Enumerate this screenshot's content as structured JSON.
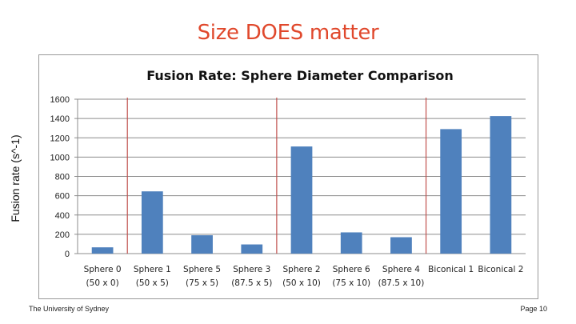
{
  "slide": {
    "title": "Size DOES matter",
    "footer_left": "The University of Sydney",
    "footer_right": "Page 10"
  },
  "chart_data": {
    "type": "bar",
    "title": "Fusion Rate: Sphere Diameter Comparison",
    "ylabel": "Fusion rate (s^-1)",
    "xlabel": "",
    "ylim": [
      0,
      1600
    ],
    "yticks": [
      0,
      200,
      400,
      600,
      800,
      1000,
      1200,
      1400,
      1600
    ],
    "grid": true,
    "legend": "none",
    "bar_color": "#4f81bd",
    "separator_color": "#c0504d",
    "categories": [
      [
        "Sphere 0",
        "(50 x 0)"
      ],
      [
        "Sphere 1",
        "(50 x 5)"
      ],
      [
        "Sphere 5",
        "(75 x 5)"
      ],
      [
        "Sphere 3",
        "(87.5 x 5)"
      ],
      [
        "Sphere 2",
        "(50 x 10)"
      ],
      [
        "Sphere 6",
        "(75 x 10)"
      ],
      [
        "Sphere 4",
        "(87.5 x 10)"
      ],
      [
        "Biconical 1",
        ""
      ],
      [
        "Biconical 2",
        ""
      ]
    ],
    "values": [
      65,
      645,
      190,
      95,
      1110,
      220,
      170,
      1290,
      1425
    ],
    "group_separators_after_index": [
      0,
      3,
      6
    ]
  }
}
